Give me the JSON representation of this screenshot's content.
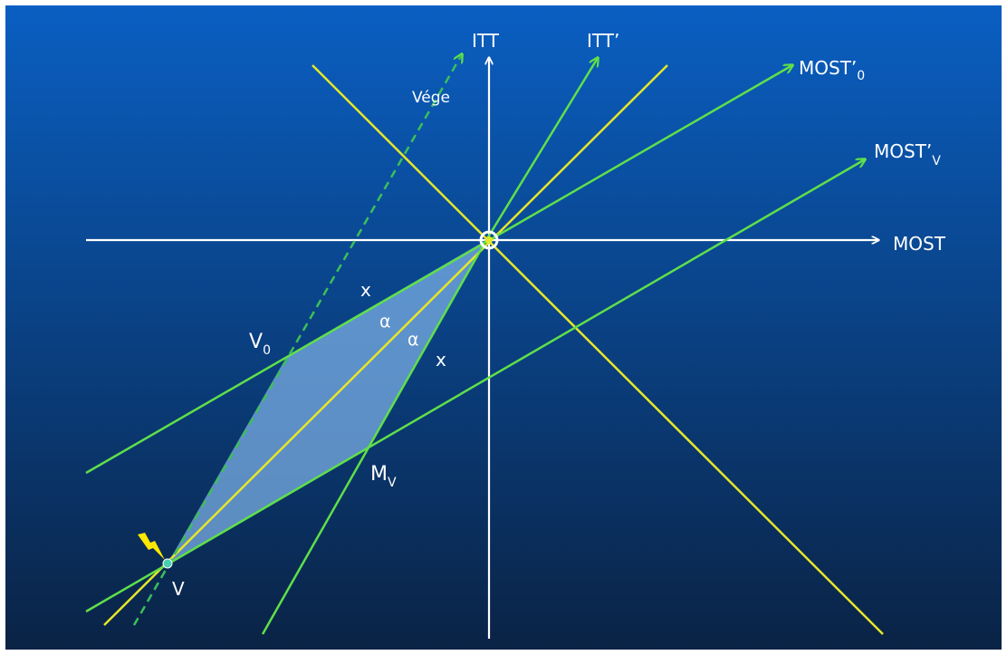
{
  "colors": {
    "bg_top": "#0a5fc2",
    "bg_bottom": "#0a2345",
    "white": "#ffffff",
    "green": "#5fe04a",
    "yellow": "#e6e62a",
    "fill": "#7aaee3",
    "point": "#46d0b0"
  },
  "labels": {
    "itt": "ITT",
    "itt_prime": "ITT’",
    "most_0": {
      "main": "MOST’",
      "sub": "0"
    },
    "most_v": {
      "main": "MOST’",
      "sub": "V"
    },
    "most": "MOST",
    "vege": "Vége",
    "x_upper": "x",
    "x_lower": "x",
    "alpha_1": "α",
    "alpha_2": "α",
    "v0": {
      "main": "V",
      "sub": "0"
    },
    "mv": {
      "main": "M",
      "sub": "V"
    },
    "v": "V"
  },
  "icons": {
    "origin": "origin-circle-icon",
    "impact": "lightning-bolt-icon"
  }
}
